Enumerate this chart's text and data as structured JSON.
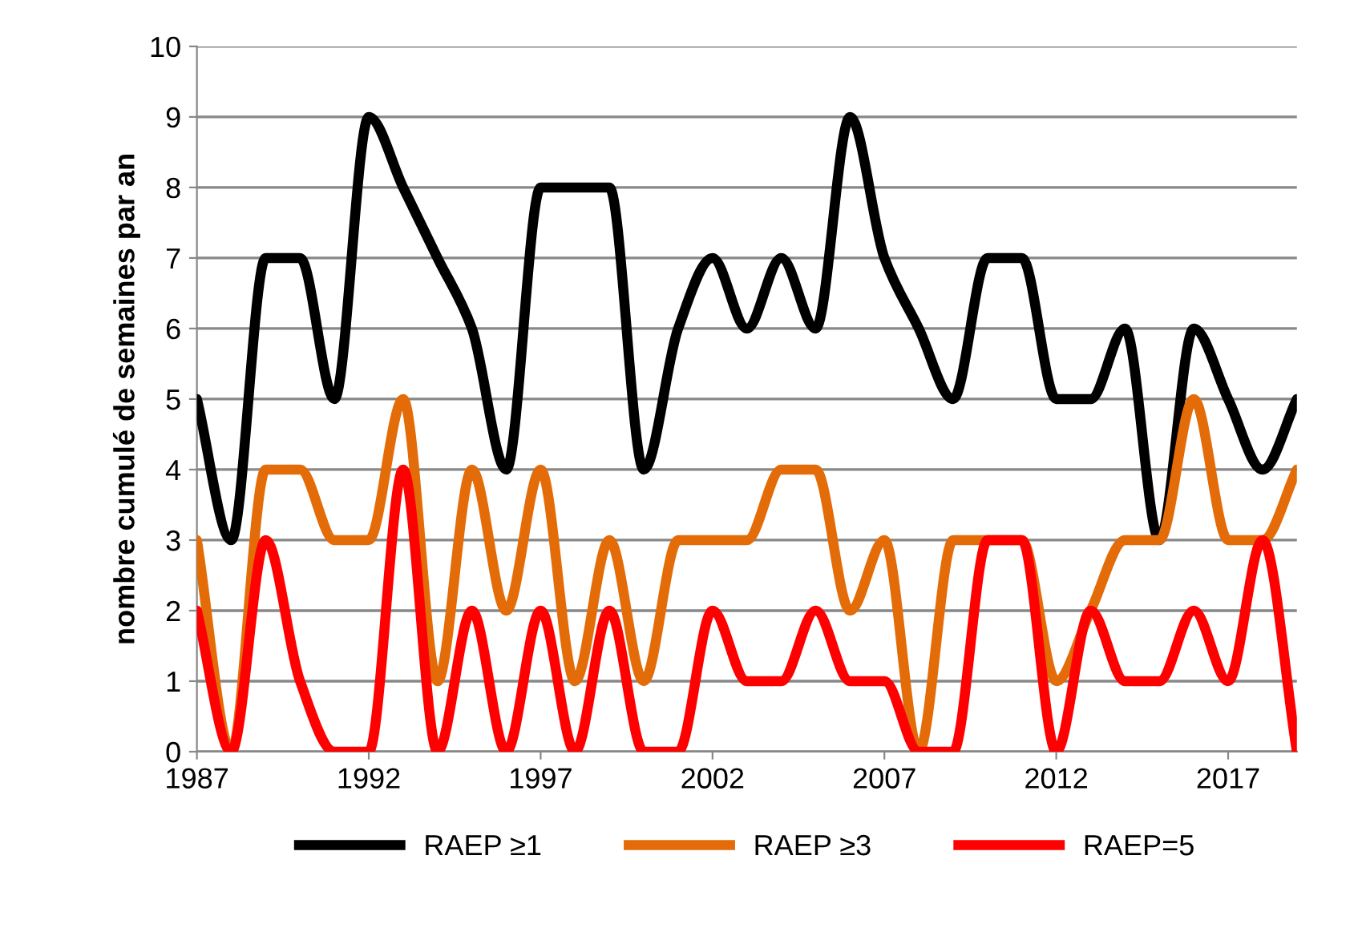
{
  "chart_data": {
    "type": "line",
    "ylabel": "nombre cumulé de semaines par an",
    "x": [
      1987,
      1988,
      1989,
      1990,
      1991,
      1992,
      1993,
      1994,
      1995,
      1996,
      1997,
      1998,
      1999,
      2000,
      2001,
      2002,
      2003,
      2004,
      2005,
      2006,
      2007,
      2008,
      2009,
      2010,
      2011,
      2012,
      2013,
      2014,
      2015,
      2016,
      2017,
      2018,
      2019
    ],
    "series": [
      {
        "name": "RAEP ≥1",
        "color": "#000000",
        "values": [
          5,
          3,
          7,
          7,
          5,
          9,
          8,
          7,
          6,
          4,
          8,
          8,
          8,
          4,
          6,
          7,
          6,
          7,
          6,
          9,
          7,
          6,
          5,
          7,
          7,
          5,
          5,
          6,
          3,
          6,
          5,
          4,
          5
        ]
      },
      {
        "name": "RAEP ≥3",
        "color": "#e36c09",
        "values": [
          3,
          0,
          4,
          4,
          3,
          3,
          5,
          1,
          4,
          2,
          4,
          1,
          3,
          1,
          3,
          3,
          3,
          4,
          4,
          2,
          3,
          0,
          3,
          3,
          3,
          1,
          2,
          3,
          3,
          5,
          3,
          3,
          4
        ]
      },
      {
        "name": "RAEP=5",
        "color": "#ff0000",
        "values": [
          2,
          0,
          3,
          1,
          0,
          0,
          4,
          0,
          2,
          0,
          2,
          0,
          2,
          0,
          0,
          2,
          1,
          1,
          2,
          1,
          1,
          0,
          0,
          3,
          3,
          0,
          2,
          1,
          1,
          2,
          1,
          3,
          0
        ]
      }
    ],
    "xlim": [
      1987,
      2019
    ],
    "xticks": [
      1987,
      1992,
      1997,
      2002,
      2007,
      2012,
      2017
    ],
    "ylim": [
      0,
      10
    ],
    "yticks": [
      0,
      1,
      2,
      3,
      4,
      5,
      6,
      7,
      8,
      9,
      10
    ],
    "grid": "y",
    "legend": "bottom",
    "marker": "none",
    "line_style": "solid"
  }
}
